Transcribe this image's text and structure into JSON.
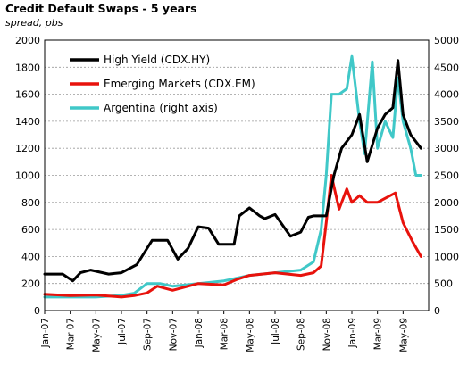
{
  "chart_data": {
    "type": "line",
    "title": "Credit Default Swaps - 5 years",
    "subtitle": "spread, pbs",
    "ylim_left": [
      0,
      2000
    ],
    "yticks_left": [
      "0",
      "200",
      "400",
      "600",
      "800",
      "1000",
      "1200",
      "1400",
      "1600",
      "1800",
      "2000"
    ],
    "ylim_right": [
      0,
      5000
    ],
    "yticks_right": [
      "0",
      "500",
      "1000",
      "1500",
      "2000",
      "2500",
      "3000",
      "3500",
      "4000",
      "4500",
      "5000"
    ],
    "x_tick_labels": [
      "Jan-07",
      "Mar-07",
      "May-07",
      "Jul-07",
      "Sep-07",
      "Nov-07",
      "Jan-08",
      "Mar-08",
      "May-08",
      "Jul-08",
      "Sep-08",
      "Nov-08",
      "Jan-09",
      "Mar-09",
      "May-09"
    ],
    "grid": true,
    "legend": "top-left",
    "series": [
      {
        "name": "High Yield (CDX.HY)",
        "axis": "left",
        "color": "#000000",
        "x": [
          0,
          0.7,
          1.1,
          1.4,
          1.8,
          2.5,
          3.0,
          3.6,
          4.2,
          4.8,
          5.2,
          5.6,
          6.0,
          6.4,
          6.8,
          7.1,
          7.4,
          7.6,
          8.0,
          8.4,
          8.6,
          9.0,
          9.6,
          10.0,
          10.3,
          10.5,
          10.8,
          11.0,
          11.3,
          11.6,
          12.0,
          12.3,
          12.6,
          13.0,
          13.3,
          13.6,
          13.8,
          14.0,
          14.3,
          14.7
        ],
        "values": [
          270,
          270,
          220,
          280,
          300,
          270,
          280,
          340,
          520,
          520,
          380,
          460,
          620,
          610,
          490,
          490,
          490,
          700,
          760,
          700,
          680,
          710,
          550,
          580,
          690,
          700,
          700,
          700,
          1000,
          1200,
          1300,
          1450,
          1100,
          1350,
          1450,
          1500,
          1850,
          1450,
          1300,
          1200
        ]
      },
      {
        "name": "Emerging Markets (CDX.EM)",
        "axis": "left",
        "color": "#e8120c",
        "x": [
          0,
          1.0,
          2.0,
          3.0,
          3.5,
          4.0,
          4.4,
          5.0,
          6.0,
          7.0,
          7.5,
          8.0,
          9.0,
          10.0,
          10.5,
          10.8,
          11.0,
          11.2,
          11.5,
          11.8,
          12.0,
          12.3,
          12.6,
          13.0,
          13.5,
          13.7,
          14.0,
          14.4,
          14.7
        ],
        "values": [
          120,
          110,
          115,
          100,
          110,
          130,
          180,
          150,
          200,
          190,
          230,
          260,
          280,
          260,
          280,
          330,
          650,
          1000,
          750,
          900,
          800,
          850,
          800,
          800,
          850,
          870,
          650,
          500,
          400
        ]
      },
      {
        "name": "Argentina (right axis)",
        "axis": "right",
        "color": "#40c8c8",
        "x": [
          0,
          1.0,
          2.0,
          3.0,
          3.5,
          4.0,
          4.5,
          5.0,
          6.0,
          7.0,
          8.0,
          9.0,
          10.0,
          10.5,
          10.8,
          11.0,
          11.2,
          11.5,
          11.8,
          12.0,
          12.3,
          12.5,
          12.8,
          13.0,
          13.3,
          13.6,
          13.8,
          14.0,
          14.3,
          14.5,
          14.7
        ],
        "values": [
          250,
          250,
          250,
          280,
          320,
          500,
          500,
          450,
          500,
          550,
          650,
          700,
          750,
          900,
          1500,
          2500,
          4000,
          4000,
          4100,
          4700,
          3500,
          2900,
          4600,
          3000,
          3500,
          3200,
          4300,
          3500,
          3000,
          2500,
          2500
        ]
      }
    ]
  }
}
